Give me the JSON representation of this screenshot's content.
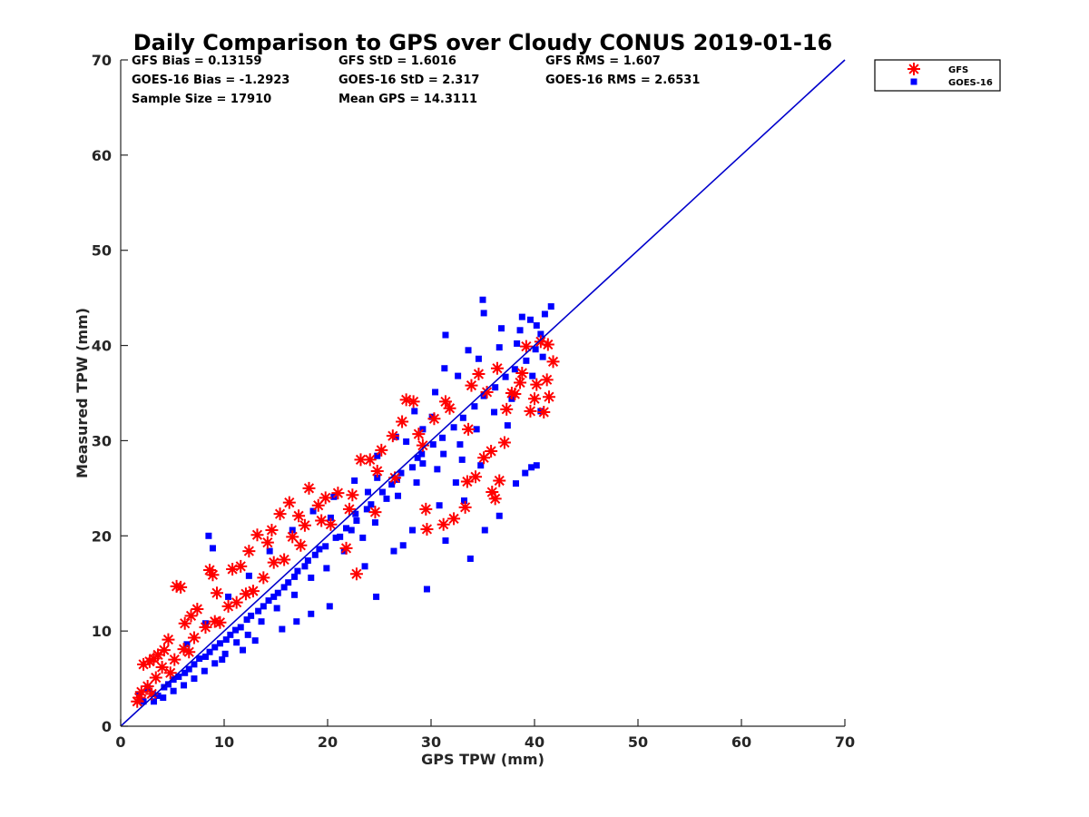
{
  "chart_data": {
    "type": "scatter",
    "title": "Daily Comparison to GPS over Cloudy CONUS 2019-01-16",
    "xlabel": "GPS TPW (mm)",
    "ylabel": "Measured TPW (mm)",
    "xlim": [
      0,
      70
    ],
    "ylim": [
      0,
      70
    ],
    "xticks": [
      "0",
      "10",
      "20",
      "30",
      "40",
      "50",
      "60",
      "70"
    ],
    "yticks": [
      "0",
      "10",
      "20",
      "30",
      "40",
      "50",
      "60",
      "70"
    ],
    "grid": false,
    "legend_position": "outside-top-right",
    "stats": [
      [
        "GFS Bias = 0.13159",
        "GFS StD = 1.6016",
        "GFS RMS = 1.607"
      ],
      [
        "GOES-16 Bias = -1.2923",
        "GOES-16 StD = 2.317",
        "GOES-16 RMS = 2.6531"
      ],
      [
        "Sample Size = 17910",
        "Mean GPS = 14.3111",
        ""
      ]
    ],
    "reference_line": {
      "x": [
        0,
        70
      ],
      "y": [
        0,
        70
      ],
      "color": "#0000cc"
    },
    "series": [
      {
        "name": "GFS",
        "marker": "asterisk",
        "color": "#ff0000",
        "points": [
          [
            1.8,
            3.0
          ],
          [
            2.2,
            6.5
          ],
          [
            2.8,
            6.8
          ],
          [
            3.2,
            7.1
          ],
          [
            3.6,
            7.5
          ],
          [
            4.2,
            8.0
          ],
          [
            4.6,
            9.1
          ],
          [
            5.4,
            14.7
          ],
          [
            5.8,
            14.6
          ],
          [
            6.2,
            10.8
          ],
          [
            6.8,
            11.6
          ],
          [
            7.4,
            12.3
          ],
          [
            8.6,
            16.4
          ],
          [
            8.9,
            15.9
          ],
          [
            9.3,
            14.0
          ],
          [
            10.8,
            16.5
          ],
          [
            11.6,
            16.8
          ],
          [
            12.4,
            18.4
          ],
          [
            13.2,
            20.1
          ],
          [
            14.2,
            19.3
          ],
          [
            14.6,
            20.6
          ],
          [
            15.4,
            22.3
          ],
          [
            16.3,
            23.5
          ],
          [
            17.2,
            22.1
          ],
          [
            18.2,
            25.0
          ],
          [
            19.1,
            23.2
          ],
          [
            19.8,
            24.0
          ],
          [
            21.0,
            24.5
          ],
          [
            22.4,
            24.3
          ],
          [
            23.2,
            28.0
          ],
          [
            24.1,
            28.0
          ],
          [
            25.2,
            29.0
          ],
          [
            26.3,
            30.5
          ],
          [
            27.2,
            32.0
          ],
          [
            27.6,
            34.3
          ],
          [
            28.3,
            34.1
          ],
          [
            29.2,
            29.5
          ],
          [
            29.5,
            22.8
          ],
          [
            29.6,
            20.7
          ],
          [
            30.3,
            32.3
          ],
          [
            31.2,
            21.2
          ],
          [
            31.4,
            34.1
          ],
          [
            32.2,
            21.8
          ],
          [
            33.3,
            23.0
          ],
          [
            33.5,
            25.7
          ],
          [
            33.6,
            31.2
          ],
          [
            34.3,
            26.2
          ],
          [
            34.6,
            37.0
          ],
          [
            35.1,
            28.2
          ],
          [
            35.4,
            35.1
          ],
          [
            35.8,
            28.9
          ],
          [
            35.9,
            24.6
          ],
          [
            36.2,
            23.9
          ],
          [
            36.6,
            25.8
          ],
          [
            37.1,
            29.8
          ],
          [
            37.3,
            33.3
          ],
          [
            38.1,
            34.9
          ],
          [
            38.6,
            36.1
          ],
          [
            39.2,
            39.9
          ],
          [
            39.6,
            33.1
          ],
          [
            40.2,
            35.9
          ],
          [
            40.6,
            40.4
          ],
          [
            40.9,
            33.0
          ],
          [
            41.2,
            36.4
          ],
          [
            41.3,
            40.1
          ],
          [
            41.8,
            38.3
          ],
          [
            41.4,
            34.6
          ],
          [
            40.0,
            34.4
          ],
          [
            38.8,
            37.1
          ],
          [
            37.8,
            35.0
          ],
          [
            26.5,
            26.1
          ],
          [
            24.6,
            22.5
          ],
          [
            22.8,
            16.0
          ],
          [
            21.8,
            18.7
          ],
          [
            20.3,
            21.2
          ],
          [
            17.8,
            21.1
          ],
          [
            16.6,
            19.9
          ],
          [
            15.8,
            17.5
          ],
          [
            13.8,
            15.6
          ],
          [
            12.8,
            14.2
          ],
          [
            11.2,
            13.0
          ],
          [
            10.4,
            12.6
          ],
          [
            9.1,
            11.0
          ],
          [
            8.2,
            10.4
          ],
          [
            7.1,
            9.3
          ],
          [
            6.1,
            8.1
          ],
          [
            5.2,
            7.0
          ],
          [
            4.0,
            6.2
          ],
          [
            3.4,
            5.1
          ],
          [
            2.6,
            4.2
          ],
          [
            2.0,
            3.6
          ],
          [
            1.6,
            2.6
          ],
          [
            3.0,
            3.4
          ],
          [
            4.8,
            5.6
          ],
          [
            6.6,
            7.8
          ],
          [
            9.6,
            10.9
          ],
          [
            12.1,
            13.9
          ],
          [
            14.8,
            17.2
          ],
          [
            17.4,
            19.0
          ],
          [
            19.4,
            21.6
          ],
          [
            22.1,
            22.8
          ],
          [
            24.8,
            26.8
          ],
          [
            28.8,
            30.7
          ],
          [
            31.8,
            33.4
          ],
          [
            33.9,
            35.8
          ],
          [
            36.4,
            37.6
          ]
        ]
      },
      {
        "name": "GOES-16",
        "marker": "square",
        "color": "#0000ff",
        "points": [
          [
            8.5,
            20.0
          ],
          [
            8.9,
            18.7
          ],
          [
            22.3,
            20.6
          ],
          [
            24.7,
            13.6
          ],
          [
            27.3,
            19.0
          ],
          [
            29.6,
            14.4
          ],
          [
            31.4,
            19.5
          ],
          [
            33.2,
            23.7
          ],
          [
            33.8,
            17.6
          ],
          [
            35.2,
            20.6
          ],
          [
            36.6,
            22.1
          ],
          [
            38.2,
            25.5
          ],
          [
            39.1,
            26.6
          ],
          [
            39.7,
            27.2
          ],
          [
            40.2,
            27.4
          ],
          [
            40.6,
            33.1
          ],
          [
            41.6,
            44.1
          ],
          [
            41.0,
            43.3
          ],
          [
            38.8,
            43.0
          ],
          [
            35.0,
            44.8
          ],
          [
            35.1,
            43.4
          ],
          [
            31.4,
            41.1
          ],
          [
            31.3,
            37.6
          ],
          [
            33.6,
            39.5
          ],
          [
            30.1,
            32.5
          ],
          [
            33.0,
            28.0
          ],
          [
            36.8,
            41.8
          ],
          [
            39.6,
            42.7
          ],
          [
            38.3,
            40.2
          ],
          [
            40.6,
            41.2
          ],
          [
            27.6,
            29.9
          ],
          [
            28.7,
            28.2
          ],
          [
            29.2,
            27.6
          ],
          [
            30.6,
            27.0
          ],
          [
            29.2,
            31.2
          ],
          [
            26.7,
            25.9
          ],
          [
            25.7,
            23.9
          ],
          [
            24.8,
            26.1
          ],
          [
            23.9,
            24.6
          ],
          [
            22.7,
            22.3
          ],
          [
            21.2,
            19.9
          ],
          [
            20.3,
            21.9
          ],
          [
            19.2,
            18.6
          ],
          [
            18.1,
            17.4
          ],
          [
            17.1,
            16.3
          ],
          [
            16.2,
            15.1
          ],
          [
            15.2,
            14.0
          ],
          [
            14.3,
            13.2
          ],
          [
            13.3,
            12.1
          ],
          [
            12.2,
            11.2
          ],
          [
            11.1,
            10.1
          ],
          [
            10.2,
            9.1
          ],
          [
            9.1,
            8.3
          ],
          [
            8.2,
            7.3
          ],
          [
            7.1,
            6.5
          ],
          [
            6.2,
            5.6
          ],
          [
            5.1,
            4.9
          ],
          [
            4.2,
            4.1
          ],
          [
            3.1,
            3.4
          ],
          [
            2.2,
            2.6
          ],
          [
            1.8,
            3.3
          ],
          [
            2.6,
            4.0
          ],
          [
            3.6,
            3.2
          ],
          [
            4.6,
            4.4
          ],
          [
            5.6,
            5.2
          ],
          [
            6.6,
            6.0
          ],
          [
            7.6,
            7.1
          ],
          [
            8.6,
            7.8
          ],
          [
            9.6,
            8.7
          ],
          [
            10.6,
            9.6
          ],
          [
            11.6,
            10.4
          ],
          [
            12.6,
            11.6
          ],
          [
            13.8,
            12.6
          ],
          [
            14.8,
            13.6
          ],
          [
            15.8,
            14.6
          ],
          [
            16.8,
            15.7
          ],
          [
            17.8,
            16.8
          ],
          [
            18.8,
            18.0
          ],
          [
            19.8,
            18.9
          ],
          [
            20.8,
            19.8
          ],
          [
            21.8,
            20.8
          ],
          [
            22.8,
            21.6
          ],
          [
            23.8,
            22.8
          ],
          [
            24.2,
            23.3
          ],
          [
            25.3,
            24.6
          ],
          [
            26.2,
            25.4
          ],
          [
            27.1,
            26.6
          ],
          [
            28.2,
            27.2
          ],
          [
            29.1,
            28.6
          ],
          [
            30.2,
            29.6
          ],
          [
            31.1,
            30.3
          ],
          [
            32.2,
            31.4
          ],
          [
            33.1,
            32.4
          ],
          [
            34.2,
            33.6
          ],
          [
            35.1,
            34.7
          ],
          [
            36.2,
            35.6
          ],
          [
            37.2,
            36.7
          ],
          [
            38.1,
            37.5
          ],
          [
            39.2,
            38.4
          ],
          [
            40.1,
            39.6
          ],
          [
            40.8,
            38.8
          ],
          [
            39.8,
            36.8
          ],
          [
            37.8,
            34.4
          ],
          [
            36.1,
            33.0
          ],
          [
            34.4,
            31.2
          ],
          [
            32.8,
            29.6
          ],
          [
            31.2,
            28.6
          ],
          [
            28.6,
            25.6
          ],
          [
            26.8,
            24.2
          ],
          [
            24.6,
            21.4
          ],
          [
            23.4,
            19.8
          ],
          [
            21.6,
            18.4
          ],
          [
            19.9,
            16.6
          ],
          [
            18.4,
            15.6
          ],
          [
            16.8,
            13.8
          ],
          [
            15.1,
            12.4
          ],
          [
            13.6,
            11.0
          ],
          [
            12.3,
            9.6
          ],
          [
            11.2,
            8.8
          ],
          [
            10.1,
            7.6
          ],
          [
            9.1,
            6.6
          ],
          [
            8.1,
            5.8
          ],
          [
            7.1,
            5.0
          ],
          [
            6.1,
            4.3
          ],
          [
            5.1,
            3.7
          ],
          [
            4.1,
            3.0
          ],
          [
            3.2,
            2.6
          ],
          [
            6.4,
            8.6
          ],
          [
            8.2,
            10.8
          ],
          [
            10.4,
            13.6
          ],
          [
            12.4,
            15.8
          ],
          [
            14.4,
            18.4
          ],
          [
            16.6,
            20.6
          ],
          [
            18.6,
            22.6
          ],
          [
            20.6,
            24.1
          ],
          [
            22.6,
            25.8
          ],
          [
            24.8,
            28.4
          ],
          [
            26.6,
            30.4
          ],
          [
            28.4,
            33.1
          ],
          [
            30.4,
            35.1
          ],
          [
            32.6,
            36.8
          ],
          [
            34.6,
            38.6
          ],
          [
            36.6,
            39.8
          ],
          [
            38.6,
            41.6
          ],
          [
            40.2,
            42.1
          ],
          [
            13.0,
            9.0
          ],
          [
            15.6,
            10.2
          ],
          [
            18.4,
            11.8
          ],
          [
            20.2,
            12.6
          ],
          [
            17.0,
            11.0
          ],
          [
            11.8,
            8.0
          ],
          [
            9.8,
            7.0
          ],
          [
            23.6,
            16.8
          ],
          [
            26.4,
            18.4
          ],
          [
            28.2,
            20.6
          ],
          [
            30.8,
            23.2
          ],
          [
            32.4,
            25.6
          ],
          [
            34.8,
            27.4
          ],
          [
            37.4,
            31.6
          ]
        ]
      }
    ]
  }
}
